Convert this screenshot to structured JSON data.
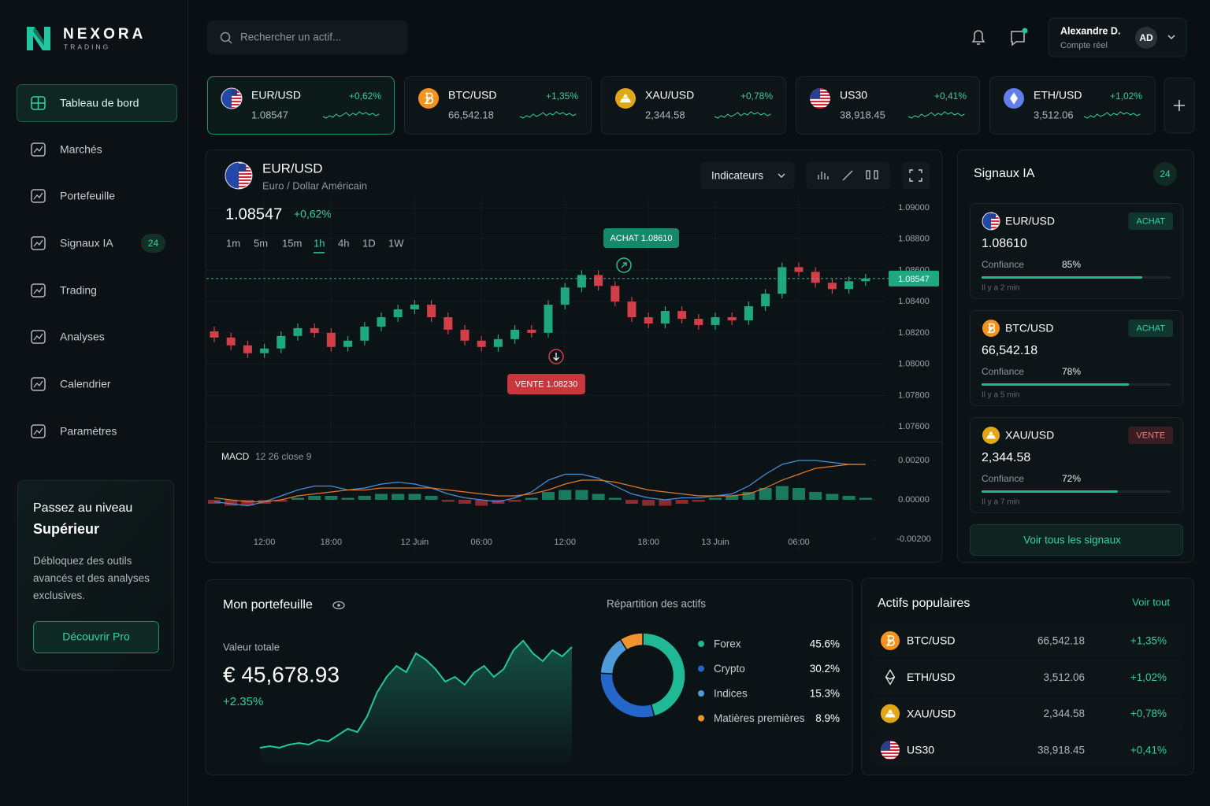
{
  "brand": {
    "name": "NEXORA",
    "tagline": "TRADING"
  },
  "sidebar": {
    "active": "Tableau de bord",
    "nav": [
      {
        "label": "Tableau de bord"
      },
      {
        "label": "Marchés"
      },
      {
        "label": "Portefeuille"
      },
      {
        "label": "Signaux IA",
        "badge": "24"
      },
      {
        "label": "Trading"
      },
      {
        "label": "Analyses"
      },
      {
        "label": "Calendrier"
      },
      {
        "label": "Paramètres"
      }
    ],
    "promo": {
      "title_line1": "Passez au niveau",
      "title_line2": "Supérieur",
      "text": "Débloquez des outils avancés et des analyses exclusives.",
      "button": "Découvrir Pro"
    }
  },
  "header": {
    "search_placeholder": "Rechercher un actif...",
    "user": {
      "name": "Alexandre D.",
      "account": "Compte réel",
      "initials": "AD"
    }
  },
  "tickers": [
    {
      "symbol": "EUR/USD",
      "price": "1.08547",
      "change": "+0,62%"
    },
    {
      "symbol": "BTC/USD",
      "price": "66,542.18",
      "change": "+1,35%"
    },
    {
      "symbol": "XAU/USD",
      "price": "2,344.58",
      "change": "+0,78%"
    },
    {
      "symbol": "US30",
      "price": "38,918.45",
      "change": "+0,41%"
    },
    {
      "symbol": "ETH/USD",
      "price": "3,512.06",
      "change": "+1,02%"
    }
  ],
  "chart_panel": {
    "symbol": "EUR/USD",
    "description": "Euro / Dollar Américain",
    "change": "+0,62%",
    "timeframes": [
      "1m",
      "5m",
      "15m",
      "1h",
      "4h",
      "1D",
      "1W"
    ],
    "active_timeframe": "1h",
    "indicators_button": "Indicateurs"
  },
  "chart_data": [
    {
      "type": "candlestick",
      "categories": [
        null,
        null,
        null,
        "12:00",
        null,
        null,
        null,
        "18:00",
        null,
        null,
        null,
        null,
        "12 Juin",
        null,
        null,
        null,
        "06:00",
        null,
        null,
        null,
        null,
        "12:00",
        null,
        null,
        null,
        null,
        "18:00",
        null,
        null,
        null,
        "13 Juin",
        null,
        null,
        null,
        null,
        "06:00",
        null,
        null,
        null,
        null
      ],
      "open": [
        1.0821,
        1.0817,
        1.0812,
        1.0807,
        1.081,
        1.0818,
        1.0823,
        1.082,
        1.0811,
        1.0815,
        1.0824,
        1.083,
        1.0835,
        1.0838,
        1.083,
        1.0822,
        1.0815,
        1.0811,
        1.0816,
        1.0822,
        1.082,
        1.0838,
        1.0849,
        1.0857,
        1.085,
        1.084,
        1.083,
        1.0826,
        1.0834,
        1.0829,
        1.0825,
        1.083,
        1.0828,
        1.0837,
        1.0845,
        1.0862,
        1.0859,
        1.0852,
        1.0848,
        1.0853
      ],
      "high": [
        1.0824,
        1.082,
        1.0815,
        1.0813,
        1.0821,
        1.0826,
        1.0826,
        1.0823,
        1.0818,
        1.0827,
        1.0833,
        1.0838,
        1.0841,
        1.0841,
        1.0833,
        1.0825,
        1.0818,
        1.0819,
        1.0825,
        1.0825,
        1.0841,
        1.0852,
        1.086,
        1.086,
        1.0853,
        1.0843,
        1.0833,
        1.0837,
        1.0837,
        1.0832,
        1.0833,
        1.0833,
        1.084,
        1.0848,
        1.0865,
        1.0865,
        1.0862,
        1.0855,
        1.0856,
        1.08577
      ],
      "low": [
        1.0814,
        1.0809,
        1.0804,
        1.0804,
        1.0807,
        1.0815,
        1.0817,
        1.0808,
        1.0808,
        1.0812,
        1.0821,
        1.0827,
        1.0832,
        1.0827,
        1.0819,
        1.0812,
        1.0808,
        1.0808,
        1.0813,
        1.0817,
        1.0817,
        1.0835,
        1.0846,
        1.0847,
        1.0837,
        1.0827,
        1.0823,
        1.0823,
        1.0826,
        1.0822,
        1.0822,
        1.0825,
        1.0825,
        1.0834,
        1.0842,
        1.0856,
        1.0849,
        1.0845,
        1.0845,
        1.085
      ],
      "close": [
        1.0817,
        1.0812,
        1.0807,
        1.081,
        1.0818,
        1.0823,
        1.082,
        1.0811,
        1.0815,
        1.0824,
        1.083,
        1.0835,
        1.0838,
        1.083,
        1.0822,
        1.0815,
        1.0811,
        1.0816,
        1.0822,
        1.082,
        1.0838,
        1.0849,
        1.0857,
        1.085,
        1.084,
        1.083,
        1.0826,
        1.0834,
        1.0829,
        1.0825,
        1.083,
        1.0828,
        1.0837,
        1.0845,
        1.0862,
        1.0859,
        1.0852,
        1.0848,
        1.0853,
        1.08547
      ],
      "up_color": "#1fa77f",
      "down_color": "#d23f48",
      "ylim": [
        1.0752,
        1.0907
      ],
      "yticks": [
        {
          "value": 1.09,
          "label": "1.09000"
        },
        {
          "value": 1.088,
          "label": "1.08800"
        },
        {
          "value": 1.086,
          "label": "1.08600"
        },
        {
          "value": 1.084,
          "label": "1.08400"
        },
        {
          "value": 1.082,
          "label": "1.08200"
        },
        {
          "value": 1.08,
          "label": "1.08000"
        },
        {
          "value": 1.078,
          "label": "1.07800"
        },
        {
          "value": 1.076,
          "label": "1.07600"
        }
      ],
      "annotations": [
        {
          "text": "ACHAT 1.08610"
        },
        {
          "text": "VENTE  1.08230"
        }
      ],
      "grid": true
    },
    {
      "type": "line",
      "title": "MACD",
      "subtitle": "12 26 close 9",
      "series": [
        {
          "color": "#4a8fe0",
          "values": [
            -0.0001,
            -0.0002,
            -0.0003,
            -0.0001,
            0.0002,
            0.0005,
            0.0007,
            0.0007,
            0.0005,
            0.0006,
            0.0008,
            0.0009,
            0.0008,
            0.0006,
            0.0003,
            0.0001,
            0,
            -0.0001,
            0.0001,
            0.0004,
            0.001,
            0.0013,
            0.0013,
            0.0011,
            0.0007,
            0.0003,
            0.0001,
            0,
            0.0001,
            0.0001,
            0.0002,
            0.0003,
            0.0007,
            0.0013,
            0.0018,
            0.002,
            0.002,
            0.0019,
            0.0018,
            0.0018
          ]
        },
        {
          "color": "#e07b2a",
          "values": [
            0.0001,
            0,
            -0.0001,
            -0.0001,
            0,
            0.0002,
            0.0003,
            0.0004,
            0.0005,
            0.0005,
            0.0006,
            0.0006,
            0.0006,
            0.0006,
            0.0005,
            0.0004,
            0.0003,
            0.0002,
            0.0002,
            0.0003,
            0.0005,
            0.0008,
            0.001,
            0.001,
            0.0009,
            0.0007,
            0.0005,
            0.0004,
            0.0003,
            0.0002,
            0.0002,
            0.0002,
            0.0003,
            0.0006,
            0.001,
            0.0013,
            0.0016,
            0.0017,
            0.0018,
            0.0018
          ]
        }
      ],
      "histogram": {
        "up_color": "#1b7a5e",
        "down_color": "#8c2a32",
        "values": [
          -0.0002,
          -0.0003,
          -0.0003,
          -0.0002,
          -0.0001,
          0.0001,
          0.0002,
          0.0002,
          0.0001,
          0.0002,
          0.0003,
          0.0003,
          0.0003,
          0.0002,
          -0.0001,
          -0.0002,
          -0.0003,
          -0.0002,
          -0.0001,
          0.0001,
          0.0004,
          0.0005,
          0.0005,
          0.0003,
          0.0001,
          -0.0002,
          -0.0003,
          -0.0003,
          -0.0002,
          -0.0001,
          0.0001,
          0.0002,
          0.0004,
          0.0006,
          0.0007,
          0.0006,
          0.0004,
          0.0003,
          0.0002,
          0.0001
        ]
      },
      "ylim": [
        -0.0026,
        0.0026
      ],
      "yticks": [
        {
          "value": 0.002,
          "label": "0.00200"
        },
        {
          "value": 0,
          "label": "0.00000"
        },
        {
          "value": -0.002,
          "label": "-0.00200"
        }
      ]
    },
    {
      "type": "pie",
      "title": "Répartition des actifs",
      "categories": [
        "Forex",
        "Crypto",
        "Indices",
        "Matières premières"
      ],
      "values": [
        45.6,
        30.2,
        15.3,
        8.9
      ],
      "value_labels": [
        "45.6%",
        "30.2%",
        "15.3%",
        "8.9%"
      ],
      "colors": [
        "#1fb995",
        "#2466c9",
        "#4f9ad8",
        "#f0922e"
      ]
    },
    {
      "type": "line",
      "color": "#22c69b",
      "values": [
        10,
        11,
        10,
        12,
        13,
        12,
        15,
        14,
        18,
        22,
        20,
        30,
        45,
        55,
        62,
        58,
        70,
        66,
        60,
        52,
        55,
        50,
        58,
        62,
        55,
        60,
        72,
        78,
        70,
        65,
        72,
        68,
        74
      ]
    }
  ],
  "portfolio": {
    "title": "Mon portefeuille",
    "total_label": "Valeur totale",
    "total": "€ 45,678.93",
    "change": "+2.35%"
  },
  "signals": {
    "title": "Signaux IA",
    "badge": "24",
    "button": "Voir tous les signaux",
    "items": [
      {
        "symbol": "EUR/USD",
        "action": "ACHAT",
        "color": "#1fa77f",
        "price": "1.08610",
        "confidence_label": "Confiance",
        "confidence": 85,
        "confidence_text": "85%",
        "time": "Il y a 2 min"
      },
      {
        "symbol": "BTC/USD",
        "action": "ACHAT",
        "color": "#1fa77f",
        "price": "66,542.18",
        "confidence_label": "Confiance",
        "confidence": 78,
        "confidence_text": "78%",
        "time": "Il y a 5 min"
      },
      {
        "symbol": "XAU/USD",
        "action": "VENTE",
        "color": "#d23f48",
        "price": "2,344.58",
        "confidence_label": "Confiance",
        "confidence": 72,
        "confidence_text": "72%",
        "time": "Il y a 7 min"
      }
    ]
  },
  "popular": {
    "title": "Actifs populaires",
    "link": "Voir tout",
    "rows": [
      {
        "symbol": "BTC/USD",
        "price": "66,542.18",
        "change": "+1,35%"
      },
      {
        "symbol": "ETH/USD",
        "price": "3,512.06",
        "change": "+1,02%"
      },
      {
        "symbol": "XAU/USD",
        "price": "2,344.58",
        "change": "+0,78%"
      },
      {
        "symbol": "US30",
        "price": "38,918.45",
        "change": "+0,41%"
      }
    ]
  }
}
